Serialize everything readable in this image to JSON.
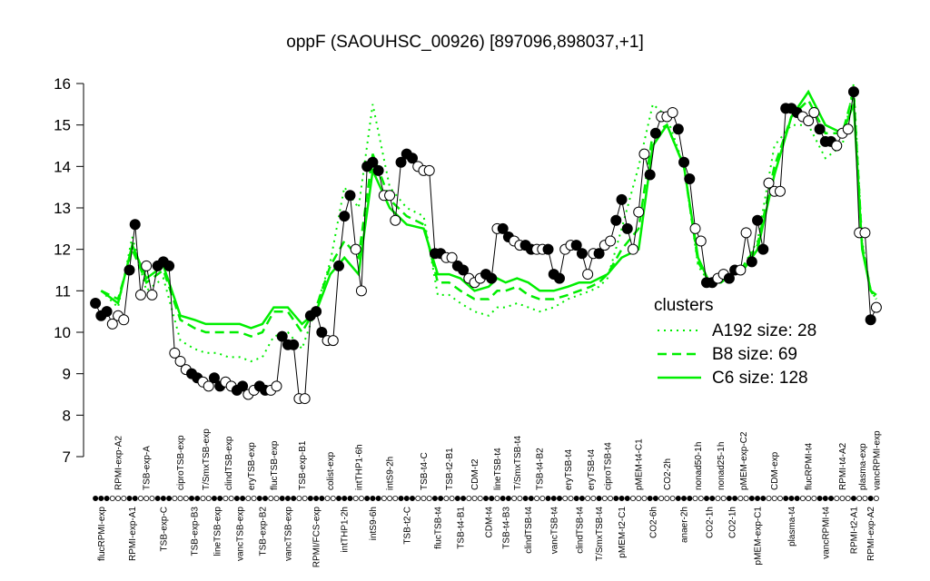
{
  "chart_data": {
    "type": "line",
    "title": "oppF (SAOUHSC_00926) [897096,898037,+1]",
    "ylim": [
      7,
      16
    ],
    "yticks": [
      7,
      8,
      9,
      10,
      11,
      12,
      13,
      14,
      15,
      16
    ],
    "marker_color": "#000000",
    "groups": [
      {
        "label": "flucRPMI-exp",
        "values": [
          10.7,
          10.4,
          10.5
        ]
      },
      {
        "label": "RPMI-exp-A2",
        "values": [
          10.2,
          10.4,
          10.3
        ]
      },
      {
        "label": "RPMI-exp-A1",
        "values": [
          11.5,
          12.6
        ]
      },
      {
        "label": "TSB-exp-A",
        "values": [
          10.9,
          11.6,
          10.9
        ]
      },
      {
        "label": "TSB-exp-C",
        "values": [
          11.6,
          11.7,
          11.6
        ]
      },
      {
        "label": "ciproTSB-exp",
        "values": [
          9.5,
          9.3,
          9.1
        ]
      },
      {
        "label": "TSB-exp-B3",
        "values": [
          9.0,
          8.9
        ]
      },
      {
        "label": "T/SmxTSB-exp",
        "values": [
          8.8,
          8.7
        ]
      },
      {
        "label": "lineTSB-exp",
        "values": [
          8.9,
          8.7
        ]
      },
      {
        "label": "clindTSB-exp",
        "values": [
          8.8,
          8.7
        ]
      },
      {
        "label": "vancTSB-exp",
        "values": [
          8.6,
          8.7
        ]
      },
      {
        "label": "eryTSB-exp",
        "values": [
          8.5,
          8.6
        ]
      },
      {
        "label": "TSB-exp-B2",
        "values": [
          8.7,
          8.6
        ]
      },
      {
        "label": "flucTSB-exp",
        "values": [
          8.6,
          8.7
        ]
      },
      {
        "label": "vancTSB-exp",
        "values": [
          9.9,
          9.7,
          9.7
        ]
      },
      {
        "label": "TSB-exp-B1",
        "values": [
          8.4,
          8.4
        ]
      },
      {
        "label": "RPMI/FCS-exp",
        "values": [
          10.4,
          10.5,
          10.0
        ]
      },
      {
        "label": "colist-exp",
        "values": [
          9.8,
          9.8
        ]
      },
      {
        "label": "intTHP1-2h",
        "values": [
          11.6,
          12.8,
          13.3
        ]
      },
      {
        "label": "intTHP1-6h",
        "values": [
          12.0,
          11.0
        ]
      },
      {
        "label": "intS9-6h",
        "values": [
          14.0,
          14.1,
          13.9
        ]
      },
      {
        "label": "intS9-2h",
        "values": [
          13.3,
          13.3,
          12.7
        ]
      },
      {
        "label": "TSB-t2-C",
        "values": [
          14.1,
          14.3,
          14.2
        ]
      },
      {
        "label": "TSB-t4-C",
        "values": [
          14.0,
          13.9,
          13.9
        ]
      },
      {
        "label": "flucTSB-t4",
        "values": [
          11.9,
          11.9
        ]
      },
      {
        "label": "TSB-t2-B1",
        "values": [
          11.8,
          11.8
        ]
      },
      {
        "label": "TSB-t4-B1",
        "values": [
          11.6,
          11.5
        ]
      },
      {
        "label": "CDM-t2",
        "values": [
          11.3,
          11.2,
          11.3
        ]
      },
      {
        "label": "CDM-t4",
        "values": [
          11.4,
          11.3
        ]
      },
      {
        "label": "lineTSB-t4",
        "values": [
          12.5
        ]
      },
      {
        "label": "TSB-t4-B3",
        "values": [
          12.5,
          12.3
        ]
      },
      {
        "label": "T/SmxTSB-t4",
        "values": [
          12.2,
          12.1
        ]
      },
      {
        "label": "clindTSB-t4",
        "values": [
          12.1,
          12.0
        ]
      },
      {
        "label": "TSB-t4-B2",
        "values": [
          12.0,
          12.0
        ]
      },
      {
        "label": "vancTSB-t4",
        "values": [
          12.0,
          11.4,
          11.3
        ]
      },
      {
        "label": "eryTSB-t4",
        "values": [
          12.0,
          12.1
        ]
      },
      {
        "label": "clindTSB-t4",
        "values": [
          12.1,
          11.9
        ]
      },
      {
        "label": "eryTSB-t4",
        "values": [
          11.4,
          11.9
        ]
      },
      {
        "label": "T/SmxTSB-t4",
        "values": [
          11.9
        ]
      },
      {
        "label": "ciproTSB-t4",
        "values": [
          12.1,
          12.2
        ]
      },
      {
        "label": "pMEM-t2-C1",
        "values": [
          12.7,
          13.2,
          12.5
        ]
      },
      {
        "label": "pMEM-t4-C1",
        "values": [
          12.0,
          12.9,
          14.3
        ]
      },
      {
        "label": "CO2-6h",
        "values": [
          13.8,
          14.8
        ]
      },
      {
        "label": "CO2-2h",
        "values": [
          15.2,
          15.2,
          15.3
        ]
      },
      {
        "label": "anaer-2h",
        "values": [
          14.9,
          14.1,
          13.7
        ]
      },
      {
        "label": "nonad50-1h",
        "values": [
          12.5,
          12.2
        ]
      },
      {
        "label": "CO2-1h",
        "values": [
          11.2,
          11.2
        ]
      },
      {
        "label": "nonad25-1h",
        "values": [
          11.3,
          11.4
        ]
      },
      {
        "label": "CO2-1h",
        "values": [
          11.3,
          11.5
        ]
      },
      {
        "label": "pMEM-exp-C2",
        "values": [
          11.5,
          12.4
        ]
      },
      {
        "label": "pMEM-exp-C1",
        "values": [
          11.7,
          12.7,
          12.0
        ]
      },
      {
        "label": "CDM-exp",
        "values": [
          13.6,
          13.4,
          13.4
        ]
      },
      {
        "label": "plasma-t4",
        "values": [
          15.4,
          15.4,
          15.3
        ]
      },
      {
        "label": "flucRPMI-t4",
        "values": [
          15.2,
          15.1,
          15.3
        ]
      },
      {
        "label": "vancRPMI-t4",
        "values": [
          14.9,
          14.6,
          14.6
        ]
      },
      {
        "label": "RPMI-t4-A2",
        "values": [
          14.5,
          14.8,
          14.9
        ]
      },
      {
        "label": "RPMI-t2-A1",
        "values": [
          15.8
        ]
      },
      {
        "label": "plasma-exp",
        "values": [
          12.4,
          12.4
        ]
      },
      {
        "label": "RPMI-exp-A2",
        "values": [
          10.3
        ]
      },
      {
        "label": "vancRPMI-exp",
        "values": [
          10.6
        ]
      }
    ],
    "legend_title": "clusters",
    "legend": "right",
    "series": [
      {
        "name": "A192 size: 28",
        "color": "#00ee00",
        "style": "dotted",
        "values": [
          11.0,
          10.6,
          12.3,
          11.0,
          11.3,
          9.8,
          9.6,
          9.5,
          9.5,
          9.4,
          9.4,
          9.3,
          9.4,
          9.9,
          10.0,
          9.6,
          10.6,
          11.7,
          13.5,
          13.0,
          15.5,
          13.5,
          13.0,
          12.8,
          10.9,
          10.9,
          10.7,
          10.5,
          10.4,
          10.6,
          10.6,
          10.7,
          10.6,
          10.5,
          10.6,
          10.8,
          10.9,
          11.0,
          11.1,
          11.3,
          12.5,
          14.0,
          15.5,
          15.2,
          14.0,
          11.6,
          11.2,
          11.3,
          11.4,
          11.6,
          12.2,
          14.5,
          15.0,
          15.0,
          14.2,
          14.5,
          16.0,
          12.2,
          11.0,
          10.8
        ]
      },
      {
        "name": "B8 size: 69",
        "color": "#00ee00",
        "style": "dashed",
        "values": [
          11.0,
          10.8,
          12.0,
          11.2,
          11.5,
          10.3,
          10.1,
          10.0,
          10.0,
          10.0,
          10.0,
          9.9,
          10.0,
          10.5,
          10.5,
          10.0,
          10.6,
          11.6,
          12.2,
          11.8,
          14.3,
          13.2,
          12.8,
          12.6,
          11.2,
          11.2,
          11.0,
          10.8,
          10.8,
          11.0,
          11.0,
          11.1,
          10.9,
          10.8,
          10.8,
          10.9,
          11.0,
          11.1,
          11.2,
          11.4,
          12.0,
          12.5,
          14.8,
          15.0,
          14.0,
          11.7,
          11.2,
          11.2,
          11.4,
          11.6,
          12.1,
          14.0,
          15.2,
          15.6,
          14.8,
          14.8,
          15.8,
          12.1,
          11.0,
          10.8
        ]
      },
      {
        "name": "C6 size: 128",
        "color": "#00ee00",
        "style": "solid",
        "values": [
          11.0,
          10.7,
          12.1,
          11.3,
          11.6,
          10.4,
          10.3,
          10.2,
          10.2,
          10.2,
          10.2,
          10.1,
          10.2,
          10.6,
          10.6,
          10.2,
          10.5,
          11.4,
          11.8,
          11.4,
          13.9,
          13.0,
          12.6,
          12.5,
          11.4,
          11.4,
          11.3,
          11.0,
          11.1,
          11.3,
          11.2,
          11.3,
          11.2,
          11.0,
          11.0,
          11.1,
          11.2,
          11.2,
          11.3,
          11.4,
          11.8,
          12.0,
          14.5,
          15.0,
          14.0,
          11.8,
          11.2,
          11.2,
          11.4,
          11.5,
          12.0,
          13.8,
          15.2,
          15.8,
          15.0,
          14.8,
          15.5,
          12.0,
          11.0,
          10.9
        ]
      }
    ]
  }
}
